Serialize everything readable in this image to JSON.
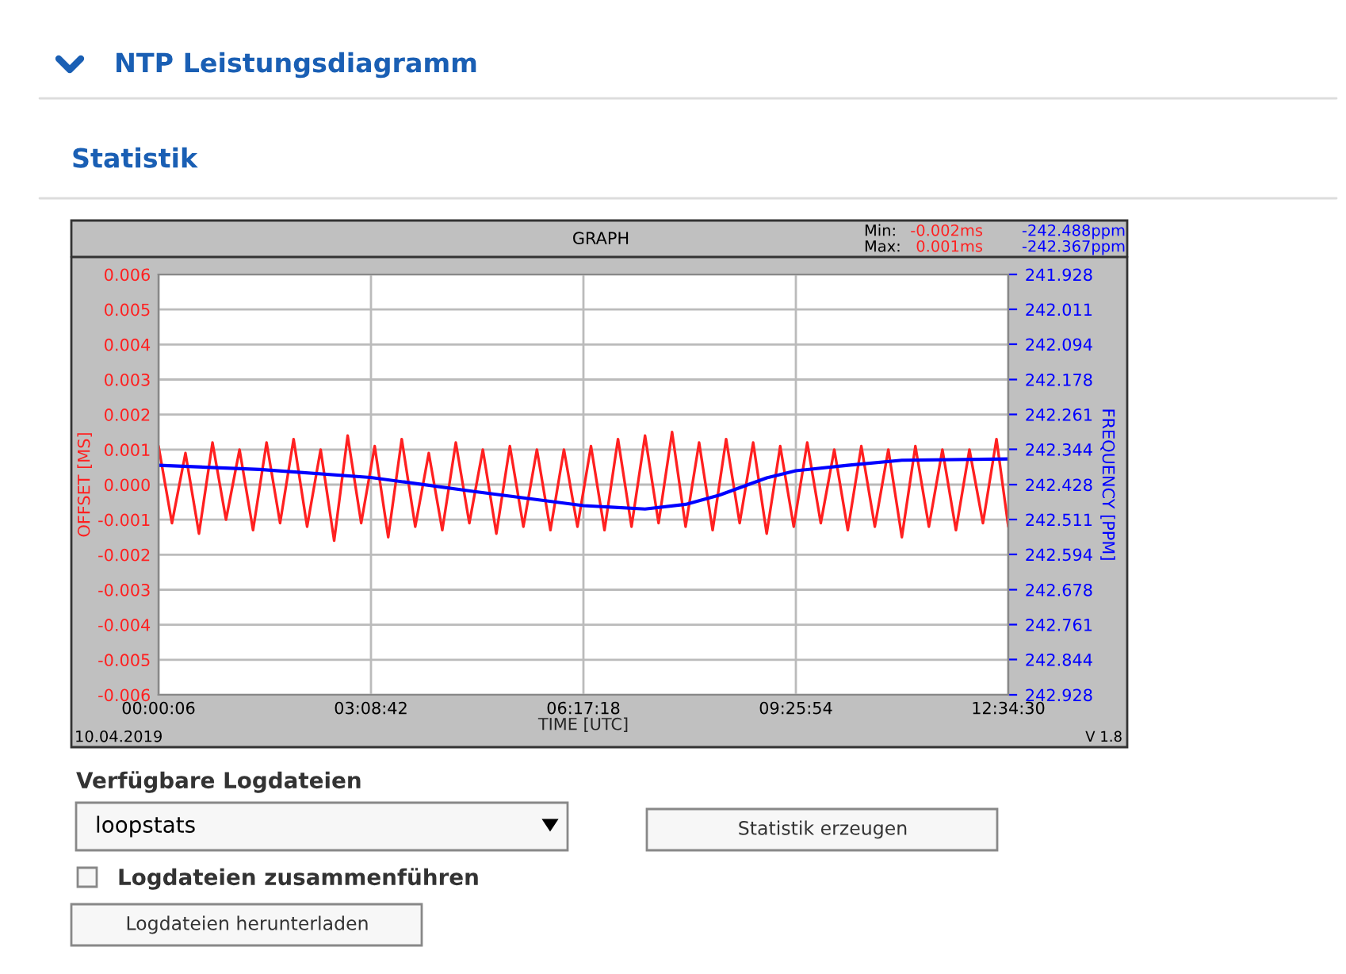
{
  "chart_data": {
    "type": "line",
    "title": "NTP Leistungsdiagramm",
    "subtitle": "Statistik",
    "xlabel": "TIME [UTC]",
    "ylabel": "OFFSET [MS]",
    "y2label": "FREQUENCY [PPM]",
    "annotations": [
      "GRAPH",
      "Min:",
      "-0.002ms",
      "-242.488ppm",
      "Max:",
      "0.001ms",
      "-242.367ppm",
      "10.04.2019",
      "V 1.8",
      "Verfügbare Logdateien",
      "loopstats",
      "Statistik erzeugen",
      "Logdateien zusammenführen",
      "Logdateien herunterladen"
    ],
    "series": [
      {
        "color": "#ff2020",
        "x": [
          0.00167,
          0.2,
          0.4,
          0.6,
          0.8,
          1.0,
          1.2,
          1.4,
          1.6,
          1.8,
          2.0,
          2.2,
          2.4,
          2.6,
          2.8,
          3.0,
          3.2,
          3.4,
          3.6,
          3.8,
          4.0,
          4.2,
          4.4,
          4.6,
          4.8,
          5.0,
          5.2,
          5.4,
          5.6,
          5.8,
          6.0,
          6.2,
          6.4,
          6.6,
          6.8,
          7.0,
          7.2,
          7.4,
          7.6,
          7.8,
          8.0,
          8.2,
          8.4,
          8.6,
          8.8,
          9.0,
          9.2,
          9.4,
          9.6,
          9.8,
          10.0,
          10.2,
          10.4,
          10.6,
          10.8,
          11.0,
          11.2,
          11.4,
          11.6,
          11.8,
          12.0,
          12.2,
          12.4,
          12.575
        ],
        "values": [
          0.0011,
          -0.0011,
          0.0009,
          -0.0014,
          0.0012,
          -0.001,
          0.001,
          -0.0013,
          0.0012,
          -0.0011,
          0.0013,
          -0.0012,
          0.001,
          -0.0016,
          0.0014,
          -0.0011,
          0.0011,
          -0.0015,
          0.0013,
          -0.0012,
          0.0009,
          -0.0013,
          0.0012,
          -0.0011,
          0.001,
          -0.0014,
          0.0011,
          -0.0012,
          0.001,
          -0.0013,
          0.001,
          -0.0012,
          0.0011,
          -0.0013,
          0.0013,
          -0.0012,
          0.0014,
          -0.0011,
          0.0015,
          -0.0012,
          0.0012,
          -0.0013,
          0.0013,
          -0.0011,
          0.0012,
          -0.0014,
          0.0011,
          -0.0012,
          0.0012,
          -0.0011,
          0.001,
          -0.0013,
          0.0011,
          -0.0012,
          0.001,
          -0.0015,
          0.0011,
          -0.0012,
          0.001,
          -0.0013,
          0.001,
          -0.0011,
          0.0013,
          -0.0012
        ]
      },
      {
        "color": "#0000ff",
        "axis": "y2",
        "x": [
          0.00167,
          1.5,
          3.14,
          4.7,
          6.29,
          7.2,
          7.8,
          8.3,
          9.0,
          9.43,
          10.2,
          11.0,
          12.575
        ],
        "values": [
          242.382,
          242.392,
          242.411,
          242.445,
          242.478,
          242.486,
          242.475,
          242.453,
          242.412,
          242.395,
          242.382,
          242.37,
          242.367
        ]
      }
    ],
    "xlim": [
      0.00167,
      12.575
    ],
    "xticks": [
      {
        "value": 0.00167,
        "label": "00:00:06"
      },
      {
        "value": 3.145,
        "label": "03:08:42"
      },
      {
        "value": 6.2883,
        "label": "06:17:18"
      },
      {
        "value": 9.4317,
        "label": "09:25:54"
      },
      {
        "value": 12.575,
        "label": "12:34:30"
      }
    ],
    "ylim": [
      -0.006,
      0.006
    ],
    "yticks": [
      0.006,
      0.005,
      0.004,
      0.003,
      0.002,
      0.001,
      {
        "value": 0,
        "label": "0.000"
      },
      -0.001,
      -0.002,
      -0.003,
      -0.004,
      -0.005,
      -0.006
    ],
    "y2lim": [
      242.928,
      241.928
    ],
    "y2ticks": [
      241.928,
      242.011,
      242.094,
      242.178,
      242.261,
      242.344,
      242.428,
      242.511,
      242.594,
      242.678,
      242.761,
      242.844,
      242.928
    ],
    "grid": true,
    "legend": false,
    "marker": "none",
    "line_style": "solid"
  }
}
